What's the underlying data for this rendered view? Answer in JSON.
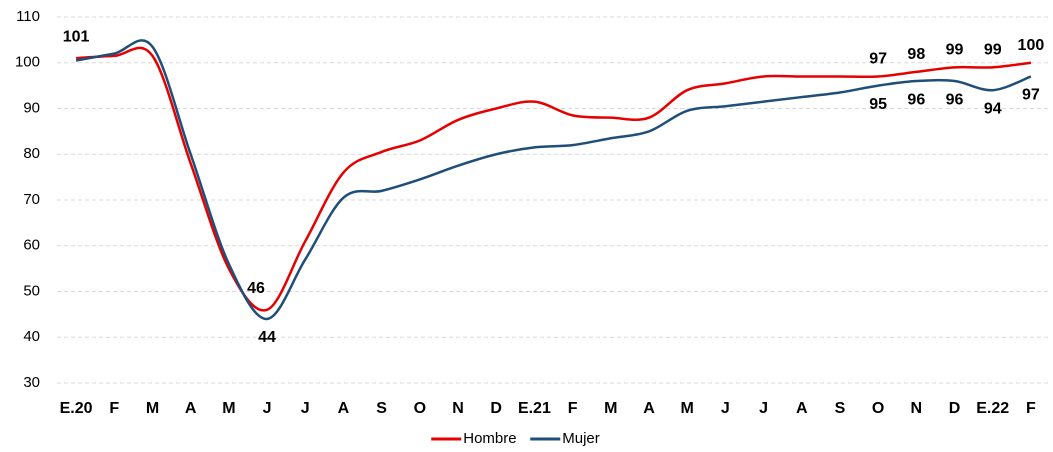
{
  "chart_data": {
    "type": "line",
    "categories": [
      "E.20",
      "F",
      "M",
      "A",
      "M",
      "J",
      "J",
      "A",
      "S",
      "O",
      "N",
      "D",
      "E.21",
      "F",
      "M",
      "A",
      "M",
      "J",
      "J",
      "A",
      "S",
      "O",
      "N",
      "D",
      "E.22",
      "F"
    ],
    "series": [
      {
        "name": "Hombre",
        "color": "#e60000",
        "values": [
          101,
          101.5,
          101.5,
          78,
          55,
          46,
          61,
          76,
          80.5,
          83,
          87.5,
          90,
          91.5,
          88.5,
          88,
          88,
          94,
          95.5,
          97,
          97,
          97,
          97,
          98,
          99,
          99,
          100
        ],
        "value_labels": [
          "101",
          null,
          null,
          null,
          null,
          "46",
          null,
          null,
          null,
          null,
          null,
          null,
          null,
          null,
          null,
          null,
          null,
          null,
          null,
          null,
          null,
          "97",
          "98",
          "99",
          "99",
          "100"
        ]
      },
      {
        "name": "Mujer",
        "color": "#1f4e79",
        "values": [
          100.5,
          102,
          103.5,
          80,
          56,
          44,
          57,
          70.5,
          72,
          74.5,
          77.5,
          80,
          81.5,
          82,
          83.5,
          85,
          89.5,
          90.5,
          91.5,
          92.5,
          93.5,
          95,
          96,
          96,
          94,
          97
        ],
        "value_labels": [
          null,
          null,
          null,
          null,
          null,
          "44",
          null,
          null,
          null,
          null,
          null,
          null,
          null,
          null,
          null,
          null,
          null,
          null,
          null,
          null,
          null,
          "95",
          "96",
          "96",
          "94",
          "97"
        ]
      }
    ],
    "ylim": [
      30,
      110
    ],
    "yticks": [
      30,
      40,
      50,
      60,
      70,
      80,
      90,
      100,
      110
    ],
    "grid": true,
    "legend": "bottom"
  }
}
